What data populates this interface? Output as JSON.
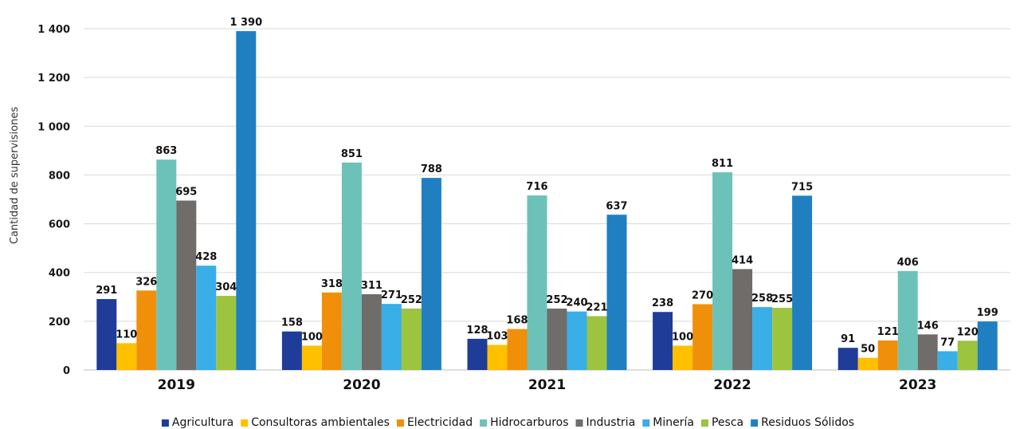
{
  "chart_data": {
    "type": "bar",
    "title": "",
    "xlabel": "",
    "ylabel": "Cantidad de supervisiones",
    "ylim": [
      0,
      1400
    ],
    "yticks": [
      0,
      200,
      400,
      600,
      800,
      1000,
      1200,
      1400
    ],
    "ytick_labels": [
      "0",
      "200",
      "400",
      "600",
      "800",
      "1 000",
      "1 200",
      "1 400"
    ],
    "grid": true,
    "legend_position": "bottom",
    "categories": [
      "2019",
      "2020",
      "2021",
      "2022",
      "2023"
    ],
    "series": [
      {
        "name": "Agricultura",
        "color": "#1f3c99",
        "values": [
          291,
          158,
          128,
          238,
          91
        ],
        "labels": [
          "291",
          "158",
          "128",
          "238",
          "91"
        ]
      },
      {
        "name": "Consultoras ambientales",
        "color": "#ffc000",
        "values": [
          110,
          100,
          103,
          100,
          50
        ],
        "labels": [
          "110",
          "100",
          "103",
          "100",
          "50"
        ]
      },
      {
        "name": "Electricidad",
        "color": "#f0900a",
        "values": [
          326,
          318,
          168,
          270,
          121
        ],
        "labels": [
          "326",
          "318",
          "168",
          "270",
          "121"
        ]
      },
      {
        "name": "Hidrocarburos",
        "color": "#6cc2b8",
        "values": [
          863,
          851,
          716,
          811,
          406
        ],
        "labels": [
          "863",
          "851",
          "716",
          "811",
          "406"
        ]
      },
      {
        "name": "Industria",
        "color": "#706c6a",
        "values": [
          695,
          311,
          252,
          414,
          146
        ],
        "labels": [
          "695",
          "311",
          "252",
          "414",
          "146"
        ]
      },
      {
        "name": "Minería",
        "color": "#3aaee6",
        "values": [
          428,
          271,
          240,
          258,
          77
        ],
        "labels": [
          "428",
          "271",
          "240",
          "258",
          "77"
        ]
      },
      {
        "name": "Pesca",
        "color": "#9cc43f",
        "values": [
          304,
          252,
          221,
          255,
          120
        ],
        "labels": [
          "304",
          "252",
          "221",
          "255",
          "120"
        ]
      },
      {
        "name": "Residuos Sólidos",
        "color": "#1f7fc1",
        "values": [
          1390,
          788,
          637,
          715,
          199
        ],
        "labels": [
          "1 390",
          "788",
          "637",
          "715",
          "199"
        ]
      }
    ]
  }
}
